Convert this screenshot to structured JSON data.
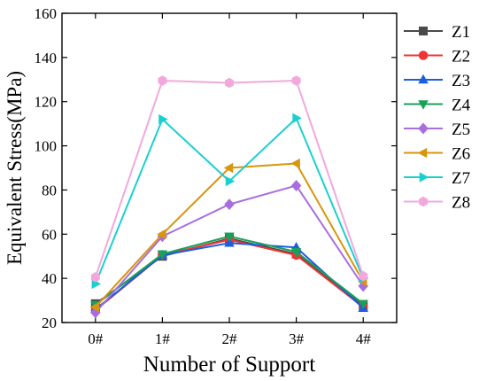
{
  "chart_data": {
    "type": "line",
    "xlabel": "Number of Support",
    "ylabel": "Equivalent Stress(MPa)",
    "categories": [
      "0#",
      "1#",
      "2#",
      "3#",
      "4#"
    ],
    "ylim": [
      20,
      160
    ],
    "yticks": [
      20,
      40,
      60,
      80,
      100,
      120,
      140,
      160
    ],
    "grid": false,
    "legend_position": "top-right",
    "series": [
      {
        "name": "Z1",
        "color": "#4a4a4a",
        "marker": "square",
        "values": [
          28.5,
          50.0,
          58.0,
          51.0,
          27.5
        ]
      },
      {
        "name": "Z2",
        "color": "#f03434",
        "marker": "circle",
        "values": [
          25.5,
          50.5,
          57.5,
          50.5,
          27.0
        ]
      },
      {
        "name": "Z3",
        "color": "#1a5fe0",
        "marker": "triangle-up",
        "values": [
          26.0,
          50.5,
          56.0,
          54.0,
          26.5
        ]
      },
      {
        "name": "Z4",
        "color": "#1aa05a",
        "marker": "triangle-down",
        "values": [
          28.0,
          51.0,
          59.0,
          52.0,
          28.5
        ]
      },
      {
        "name": "Z5",
        "color": "#a86ee0",
        "marker": "diamond",
        "values": [
          24.5,
          59.0,
          73.5,
          82.0,
          36.5
        ]
      },
      {
        "name": "Z6",
        "color": "#d6960e",
        "marker": "triangle-left",
        "values": [
          27.0,
          60.0,
          90.0,
          92.0,
          38.5
        ]
      },
      {
        "name": "Z7",
        "color": "#1ccfcf",
        "marker": "triangle-right",
        "values": [
          37.5,
          112.0,
          84.0,
          112.5,
          40.0
        ]
      },
      {
        "name": "Z8",
        "color": "#f2a8dc",
        "marker": "hexagon",
        "values": [
          40.5,
          129.5,
          128.5,
          129.5,
          41.0
        ]
      }
    ]
  }
}
